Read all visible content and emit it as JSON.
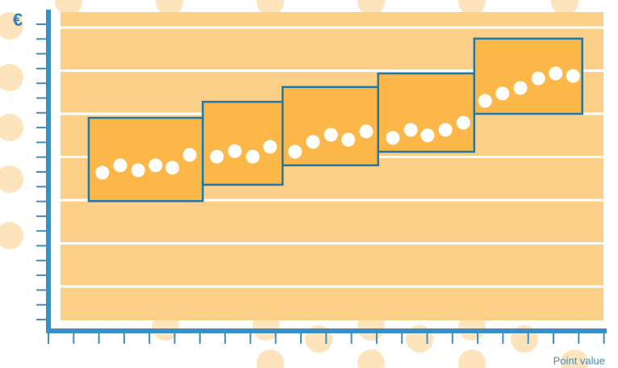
{
  "chart_data": {
    "type": "scatter",
    "y_label": "€",
    "x_label": "Point value",
    "xlim": [
      0,
      100
    ],
    "ylim": [
      0,
      100
    ],
    "yticks": [
      11,
      25,
      39,
      53,
      67,
      81,
      95
    ],
    "grid": true,
    "band_color": "#fbb848",
    "band_border": "#1f78a8",
    "dot_color": "#ffffff",
    "bands": [
      {
        "x": [
          5.2,
          26.2
        ],
        "y": [
          38.7,
          65.7
        ]
      },
      {
        "x": [
          26.2,
          40.9
        ],
        "y": [
          44.0,
          70.9
        ]
      },
      {
        "x": [
          40.9,
          58.5
        ],
        "y": [
          50.3,
          75.7
        ]
      },
      {
        "x": [
          58.5,
          76.2
        ],
        "y": [
          54.7,
          80.1
        ]
      },
      {
        "x": [
          76.2,
          96.1
        ],
        "y": [
          67.0,
          91.4
        ]
      }
    ],
    "x": [
      7.7,
      11.0,
      14.3,
      17.5,
      20.6,
      23.8,
      28.8,
      32.1,
      35.4,
      38.6,
      43.2,
      46.5,
      49.8,
      53.0,
      56.3,
      61.2,
      64.5,
      67.6,
      70.9,
      74.2,
      78.2,
      81.4,
      84.7,
      88.0,
      91.2,
      94.4
    ],
    "values": [
      47.9,
      50.3,
      48.7,
      50.3,
      49.5,
      53.7,
      53.1,
      54.9,
      53.1,
      56.3,
      54.7,
      57.9,
      60.2,
      58.6,
      61.3,
      59.2,
      61.8,
      60.0,
      61.8,
      64.1,
      71.2,
      73.6,
      75.4,
      78.5,
      80.1,
      79.3
    ]
  }
}
